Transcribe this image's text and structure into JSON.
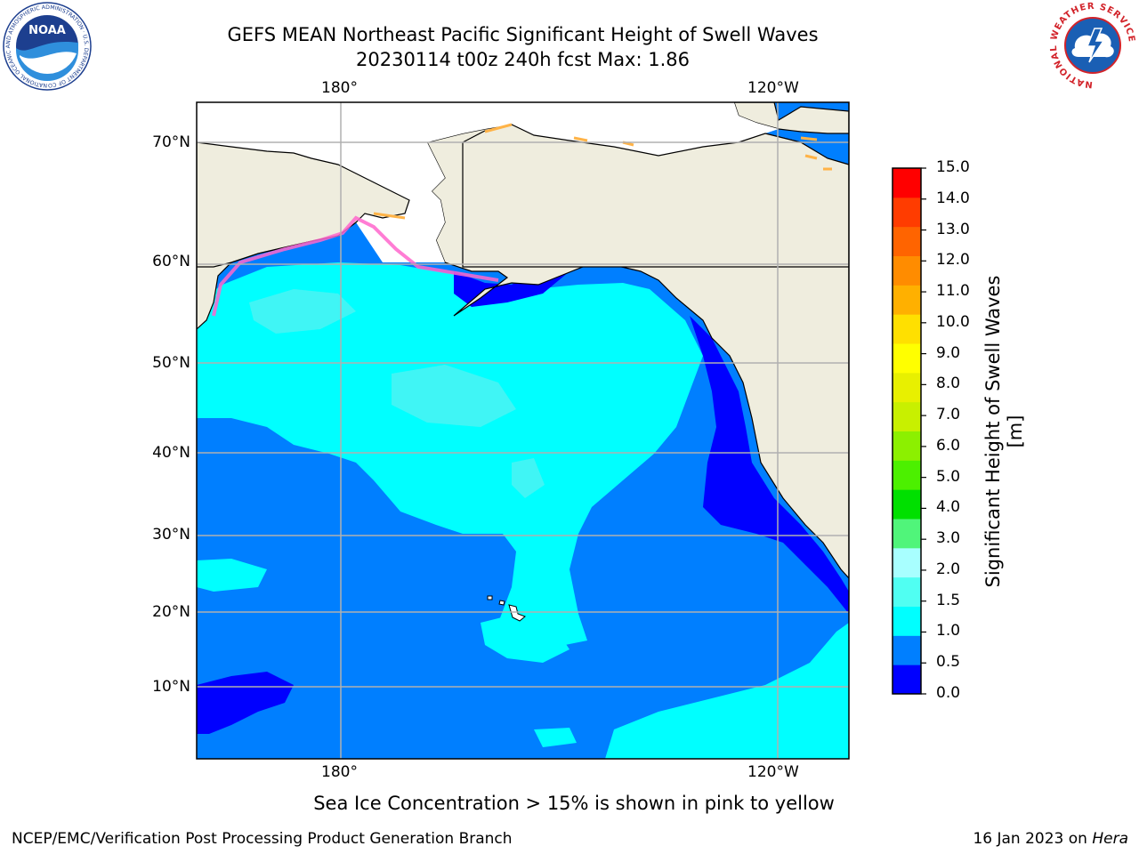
{
  "header": {
    "title_line1": "GEFS MEAN Northeast Pacific Significant Height of Swell Waves",
    "title_line2": "20230114 t00z 240h fcst   Max: 1.86"
  },
  "map": {
    "top_lon_labels": [
      "180°",
      "120°W"
    ],
    "bottom_lon_labels": [
      "180°",
      "120°W"
    ],
    "lat_labels": [
      "70°N",
      "60°N",
      "50°N",
      "40°N",
      "30°N",
      "20°N",
      "10°N"
    ],
    "colors": {
      "land": "#efedde",
      "ocean_low": "#0000ff",
      "ocean_mid": "#007fff",
      "ocean_high": "#00ffff",
      "ocean_higher": "#40f5f5",
      "grid": "#b0b0b0"
    }
  },
  "colorbar": {
    "title": "Significant Height of Swell Waves [m]",
    "tick_labels": [
      "15.0",
      "14.0",
      "13.0",
      "12.0",
      "11.0",
      "10.0",
      "9.0",
      "8.0",
      "7.0",
      "6.0",
      "5.0",
      "4.0",
      "3.0",
      "2.0",
      "1.5",
      "1.0",
      "0.5",
      "0.0"
    ],
    "colors": [
      "#0000ff",
      "#007fff",
      "#00ffff",
      "#50fff2",
      "#a8ffff",
      "#50f57a",
      "#00e000",
      "#4cf000",
      "#8cf000",
      "#c8f000",
      "#e8f000",
      "#ffff00",
      "#ffe000",
      "#ffb000",
      "#ff8c00",
      "#ff6400",
      "#ff3c00",
      "#ff0000"
    ]
  },
  "footer": {
    "sea_ice_note": "Sea Ice Concentration > 15% is shown in pink to yellow",
    "credit": "NCEP/EMC/Verification Post Processing Product Generation Branch",
    "date": "16 Jan 2023 on",
    "host": "Hera"
  },
  "logos": {
    "noaa_text": "NOAA",
    "noaa_ring_text": "NATIONAL OCEANIC AND ATMOSPHERIC ADMINISTRATION · U.S. DEPARTMENT OF COMMERCE",
    "nws_ring_text": "NATIONAL WEATHER SERVICE"
  }
}
